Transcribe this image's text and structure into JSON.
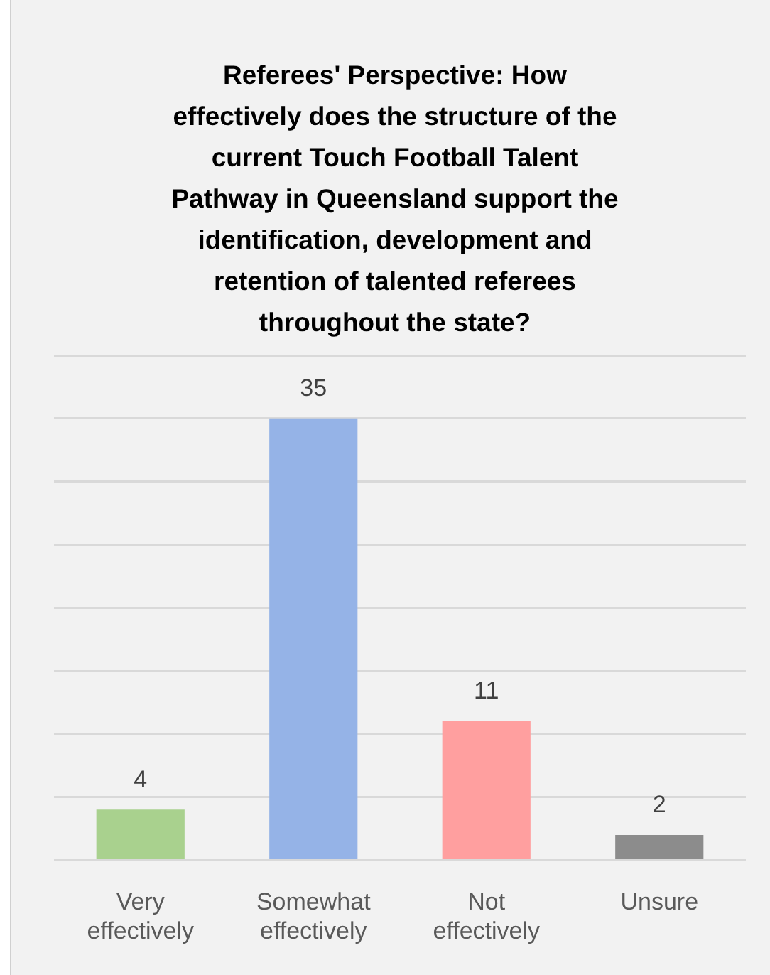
{
  "chart_data": {
    "type": "bar",
    "title": "Referees' Perspective: How effectively does the structure of the current Touch Football Talent Pathway in Queensland support the identification, development and retention of talented referees throughout the state?",
    "categories": [
      "Very effectively",
      "Somewhat effectively",
      "Not effectively",
      "Unsure"
    ],
    "values": [
      4,
      35,
      11,
      2
    ],
    "colors": [
      "#a9d18e",
      "#95b3e7",
      "#ff9f9f",
      "#8c8c8c"
    ],
    "tick_labels": "x",
    "grid": "y",
    "legend": false,
    "data_labels": true
  }
}
